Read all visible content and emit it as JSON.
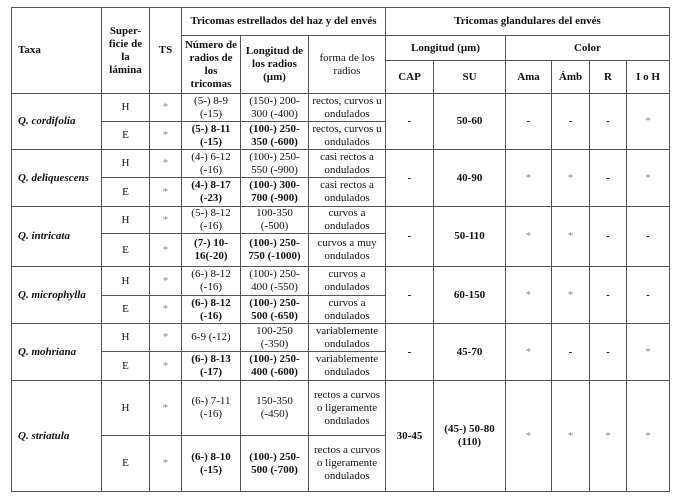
{
  "headers": {
    "taxa": "Taxa",
    "superficie": "Super-ficie de la lámina",
    "ts": "TS",
    "estrellados": "Tricomas estrellados del haz y del envés",
    "numero": "Número de radios de los tricomas",
    "longitud_radios": "Longitud de los radios (µm)",
    "forma": "forma de los radios",
    "glandulares": "Tricomas glandulares del envés",
    "longitud": "Longitud (µm)",
    "color": "Color",
    "cap": "CAP",
    "su": "SU",
    "ama": "Ama",
    "amb": "Ámb",
    "r": "R",
    "ioh": "I o H"
  },
  "rows": [
    {
      "taxa": "Q. cordifolia",
      "H": {
        "sup": "H",
        "ts": "*",
        "num": "(5-) 8-9 (-15)",
        "long": "(150-) 200-300 (-400)",
        "forma": "rectos, curvos u ondulados"
      },
      "E": {
        "sup": "E",
        "ts": "*",
        "num": "(5-) 8-11 (-15)",
        "long": "(100-) 250-350 (-600)",
        "forma": "rectos, curvos u ondulados"
      },
      "cap": "-",
      "su": "50-60",
      "ama": "-",
      "amb": "-",
      "r": "-",
      "ioh": "*"
    },
    {
      "taxa": "Q. deliquescens",
      "H": {
        "sup": "H",
        "ts": "*",
        "num": "(4-) 6-12 (-16)",
        "long": "(100-) 250-550 (-900)",
        "forma": "casi rectos a ondulados"
      },
      "E": {
        "sup": "E",
        "ts": "*",
        "num": "(4-) 8-17 (-23)",
        "long": "(100-) 300-700 (-900)",
        "forma": "casi rectos a ondulados"
      },
      "cap": "-",
      "su": "40-90",
      "ama": "*",
      "amb": "*",
      "r": "-",
      "ioh": "*"
    },
    {
      "taxa": "Q. intricata",
      "H": {
        "sup": "H",
        "ts": "*",
        "num": "(5-) 8-12 (-16)",
        "long": "100-350 (-500)",
        "forma": "curvos a ondulados"
      },
      "E": {
        "sup": "E",
        "ts": "*",
        "num": "(7-) 10-16(-20)",
        "long": "(100-) 250-750 (-1000)",
        "forma": "curvos a muy ondulados"
      },
      "cap": "-",
      "su": "50-110",
      "ama": "*",
      "amb": "*",
      "r": "-",
      "ioh": "-"
    },
    {
      "taxa": "Q. microphylla",
      "H": {
        "sup": "H",
        "ts": "*",
        "num": "(6-) 8-12 (-16)",
        "long": "(100-) 250-400 (-550)",
        "forma": "curvos a ondulados"
      },
      "E": {
        "sup": "E",
        "ts": "*",
        "num": "(6-) 8-12 (-16)",
        "long": "(100-) 250-500 (-650)",
        "forma": "curvos a ondulados"
      },
      "cap": "-",
      "su": "60-150",
      "ama": "*",
      "amb": "*",
      "r": "-",
      "ioh": "-"
    },
    {
      "taxa": "Q. mohriana",
      "H": {
        "sup": "H",
        "ts": "*",
        "num": "6-9 (-12)",
        "long": "100-250 (-350)",
        "forma": "variablemente ondulados"
      },
      "E": {
        "sup": "E",
        "ts": "*",
        "num": "(6-) 8-13 (-17)",
        "long": "(100-) 250-400 (-600)",
        "forma": "variablemente ondulados"
      },
      "cap": "-",
      "su": "45-70",
      "ama": "*",
      "amb": "-",
      "r": "-",
      "ioh": "*"
    },
    {
      "taxa": "Q. striatula",
      "H": {
        "sup": "H",
        "ts": "*",
        "num": "(6-) 7-11 (-16)",
        "long": "150-350 (-450)",
        "forma": "rectos a curvos o ligeramente ondulados"
      },
      "E": {
        "sup": "E",
        "ts": "*",
        "num": "(6-) 8-10 (-15)",
        "long": "(100-) 250-500 (-700)",
        "forma": "rectos a curvos o ligeramente ondulados"
      },
      "cap": "30-45",
      "su": "(45-) 50-80 (110)",
      "ama": "*",
      "amb": "*",
      "r": "*",
      "ioh": "*"
    }
  ]
}
